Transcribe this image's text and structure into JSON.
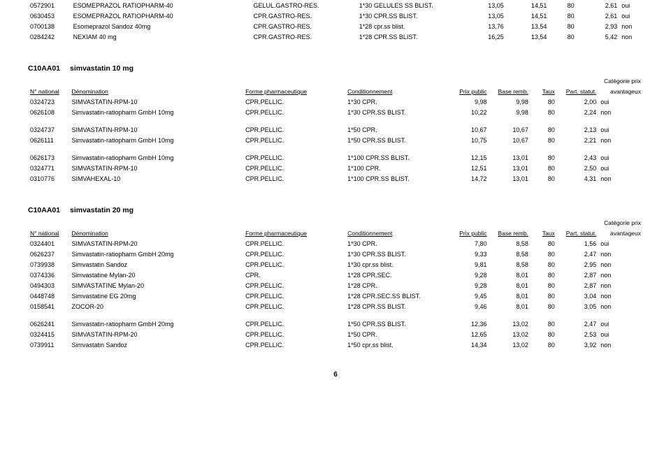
{
  "pageNumber": "6",
  "topRows": [
    [
      "0572901",
      "ESOMEPRAZOL RATIOPHARM-40",
      "GELUL.GASTRO-RES.",
      "1*30 GELULES SS BLIST.",
      "13,05",
      "14,51",
      "80",
      "2,61",
      "oui"
    ],
    [
      "0630453",
      "ESOMEPRAZOL RATIOPHARM-40",
      "CPR.GASTRO-RES.",
      "1*30 CPR.SS BLIST.",
      "13,05",
      "14,51",
      "80",
      "2,61",
      "oui"
    ],
    [
      "0700138",
      "Esomeprazol Sandoz 40mg",
      "CPR.GASTRO-RES.",
      "1*28 cpr.ss blist.",
      "13,76",
      "13,54",
      "80",
      "2,93",
      "non"
    ],
    [
      "0284242",
      "NEXIAM 40 mg",
      "CPR.GASTRO-RES.",
      "1*28 CPR.SS BLIST.",
      "16,25",
      "13,54",
      "80",
      "5,42",
      "non"
    ]
  ],
  "sections": [
    {
      "code": "C10AA01",
      "drug": "simvastatin   10 mg",
      "headers": {
        "nat": "N° national",
        "den": "Dénomination",
        "form": "Forme pharmaceutique",
        "cond": "Conditionnement",
        "pp": "Prix public",
        "br": "Base remb.",
        "tx": "Taux",
        "ps": "Part. statut.",
        "cat1": "Catégorie prix",
        "cat2": "avantageux"
      },
      "groups": [
        [
          [
            "0324723",
            "SIMVASTATIN-RPM-10",
            "CPR.PELLIC.",
            "1*30 CPR.",
            "9,98",
            "9,98",
            "80",
            "2,00",
            "oui"
          ],
          [
            "0626108",
            "Simvastatin-ratiopharm GmbH 10mg",
            "CPR.PELLIC.",
            "1*30 CPR.SS BLIST.",
            "10,22",
            "9,98",
            "80",
            "2,24",
            "non"
          ]
        ],
        [
          [
            "0324737",
            "SIMVASTATIN-RPM-10",
            "CPR.PELLIC.",
            "1*50 CPR.",
            "10,67",
            "10,67",
            "80",
            "2,13",
            "oui"
          ],
          [
            "0626111",
            "Simvastatin-ratiopharm GmbH 10mg",
            "CPR.PELLIC.",
            "1*50 CPR.SS BLIST.",
            "10,75",
            "10,67",
            "80",
            "2,21",
            "non"
          ]
        ],
        [
          [
            "0626173",
            "Simvastatin-ratiopharm GmbH 10mg",
            "CPR.PELLIC.",
            "1*100 CPR.SS BLIST.",
            "12,15",
            "13,01",
            "80",
            "2,43",
            "oui"
          ],
          [
            "0324771",
            "SIMVASTATIN-RPM-10",
            "CPR.PELLIC.",
            "1*100 CPR.",
            "12,51",
            "13,01",
            "80",
            "2,50",
            "oui"
          ],
          [
            "0310776",
            "SIMVAHEXAL-10",
            "CPR.PELLIC.",
            "1*100 CPR.SS BLIST.",
            "14,72",
            "13,01",
            "80",
            "4,31",
            "non"
          ]
        ]
      ]
    },
    {
      "code": "C10AA01",
      "drug": "simvastatin   20 mg",
      "headers": {
        "nat": "N° national",
        "den": "Dénomination",
        "form": "Forme pharmaceutique",
        "cond": "Conditionnement",
        "pp": "Prix public",
        "br": "Base remb.",
        "tx": "Taux",
        "ps": "Part. statut.",
        "cat1": "Catégorie prix",
        "cat2": "avantageux"
      },
      "groups": [
        [
          [
            "0324401",
            "SIMVASTATIN-RPM-20",
            "CPR.PELLIC.",
            "1*30 CPR.",
            "7,80",
            "8,58",
            "80",
            "1,56",
            "oui"
          ],
          [
            "0626237",
            "Simvastatin-ratiopharm GmbH 20mg",
            "CPR.PELLIC.",
            "1*30 CPR.SS BLIST.",
            "9,33",
            "8,58",
            "80",
            "2,47",
            "non"
          ],
          [
            "0739938",
            "Simvastatin Sandoz",
            "CPR.PELLIC.",
            "1*30 cpr.ss blist.",
            "9,81",
            "8,58",
            "80",
            "2,95",
            "non"
          ],
          [
            "0374336",
            "Simvastatine Mylan-20",
            "CPR.",
            "1*28 CPR.SEC.",
            "9,28",
            "8,01",
            "80",
            "2,87",
            "non"
          ],
          [
            "0494303",
            "SIMVASTATINE Mylan-20",
            "CPR.PELLIC.",
            "1*28 CPR.",
            "9,28",
            "8,01",
            "80",
            "2,87",
            "non"
          ],
          [
            "0448748",
            "Simvastatine EG 20mg",
            "CPR.PELLIC.",
            "1*28 CPR.SEC.SS BLIST.",
            "9,45",
            "8,01",
            "80",
            "3,04",
            "non"
          ],
          [
            "0158541",
            "ZOCOR-20",
            "CPR.PELLIC.",
            "1*28 CPR.SS BLIST.",
            "9,46",
            "8,01",
            "80",
            "3,05",
            "non"
          ]
        ],
        [
          [
            "0626241",
            "Simvastatin-ratiopharm GmbH 20mg",
            "CPR.PELLIC.",
            "1*50 CPR.SS BLIST.",
            "12,36",
            "13,02",
            "80",
            "2,47",
            "oui"
          ],
          [
            "0324415",
            "SIMVASTATIN-RPM-20",
            "CPR.PELLIC.",
            "1*50 CPR.",
            "12,65",
            "13,02",
            "80",
            "2,53",
            "oui"
          ],
          [
            "0739911",
            "Simvastatin Sandoz",
            "CPR.PELLIC.",
            "1*50 cpr.ss blist.",
            "14,34",
            "13,02",
            "80",
            "3,92",
            "non"
          ]
        ]
      ]
    }
  ]
}
